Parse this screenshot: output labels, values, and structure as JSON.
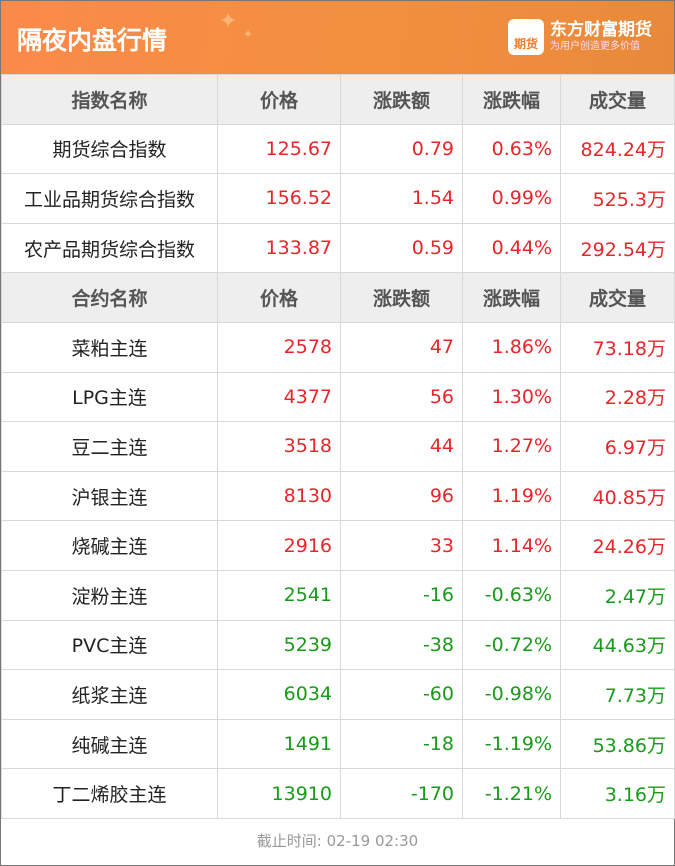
{
  "title": "隔夜内盘行情",
  "logo": {
    "brand": "东方财富期货",
    "slogan": "为用户创造更多价值",
    "icon_text": "期货"
  },
  "colors": {
    "up": "#e8262a",
    "down": "#199a1a",
    "header": "#f2903f"
  },
  "index_headers": [
    "指数名称",
    "价格",
    "涨跌额",
    "涨跌幅",
    "成交量"
  ],
  "indices": [
    [
      "期货综合指数",
      "125.67",
      "0.79",
      "0.63%",
      "824.24万",
      "up"
    ],
    [
      "工业品期货综合指数",
      "156.52",
      "1.54",
      "0.99%",
      "525.3万",
      "up"
    ],
    [
      "农产品期货综合指数",
      "133.87",
      "0.59",
      "0.44%",
      "292.54万",
      "up"
    ]
  ],
  "contract_headers": [
    "合约名称",
    "价格",
    "涨跌额",
    "涨跌幅",
    "成交量"
  ],
  "contracts": [
    [
      "菜粕主连",
      "2578",
      "47",
      "1.86%",
      "73.18万",
      "up"
    ],
    [
      "LPG主连",
      "4377",
      "56",
      "1.30%",
      "2.28万",
      "up"
    ],
    [
      "豆二主连",
      "3518",
      "44",
      "1.27%",
      "6.97万",
      "up"
    ],
    [
      "沪银主连",
      "8130",
      "96",
      "1.19%",
      "40.85万",
      "up"
    ],
    [
      "烧碱主连",
      "2916",
      "33",
      "1.14%",
      "24.26万",
      "up"
    ],
    [
      "淀粉主连",
      "2541",
      "-16",
      "-0.63%",
      "2.47万",
      "down"
    ],
    [
      "PVC主连",
      "5239",
      "-38",
      "-0.72%",
      "44.63万",
      "down"
    ],
    [
      "纸浆主连",
      "6034",
      "-60",
      "-0.98%",
      "7.73万",
      "down"
    ],
    [
      "纯碱主连",
      "1491",
      "-18",
      "-1.19%",
      "53.86万",
      "down"
    ],
    [
      "丁二烯胶主连",
      "13910",
      "-170",
      "-1.21%",
      "3.16万",
      "down"
    ]
  ],
  "footer": "截止时间: 02-19 02:30"
}
